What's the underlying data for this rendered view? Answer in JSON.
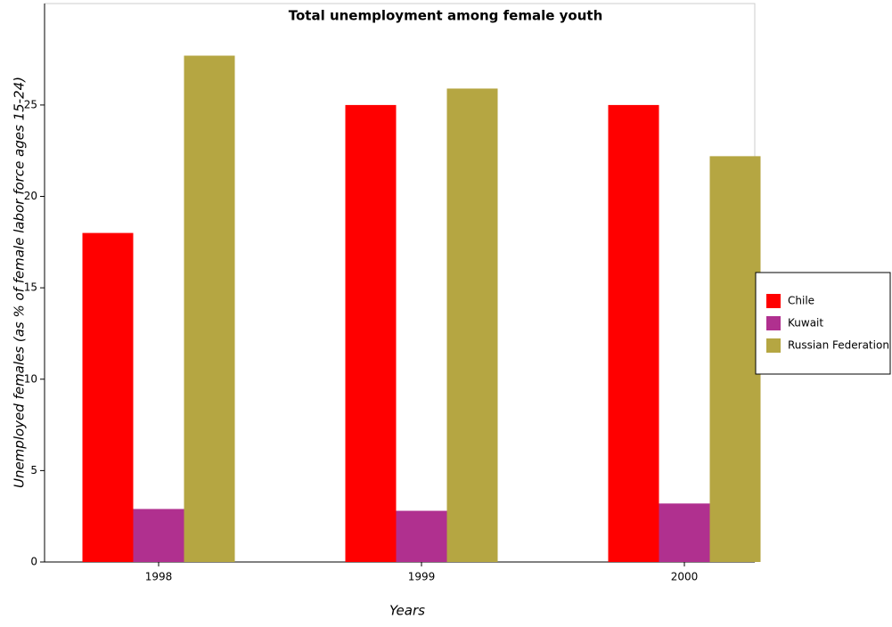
{
  "chart_data": {
    "type": "bar",
    "title": "Total unemployment among female youth",
    "x_label": "Years",
    "y_label": "Unemployed females (as % of female labor force ages 15-24)",
    "categories": [
      "1998",
      "1999",
      "2000"
    ],
    "series": [
      {
        "name": "Chile",
        "color": "#ff0000",
        "values": [
          18,
          25,
          25
        ]
      },
      {
        "name": "Kuwait",
        "color": "#b0308f",
        "values": [
          2.9,
          2.8,
          3.2
        ]
      },
      {
        "name": "Russian Federation",
        "color": "#b5a642",
        "values": [
          27.7,
          25.9,
          22.2
        ]
      }
    ],
    "ylim": [
      0,
      30.55
    ],
    "yticks": [
      0,
      5,
      10,
      15,
      20,
      25
    ],
    "legend": "right"
  }
}
